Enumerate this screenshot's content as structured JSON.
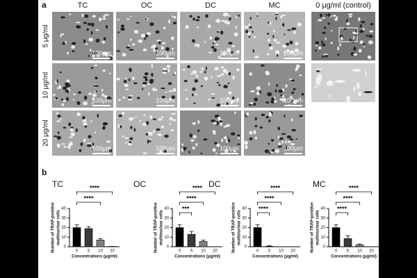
{
  "figure": {
    "panel_a": {
      "label": "a",
      "columns": [
        "TC",
        "OC",
        "DC",
        "MC",
        "0 μg/ml (control)"
      ],
      "rows": [
        "5 μg/ml",
        "10 μg/ml",
        "20 μg/ml"
      ],
      "scale_bar": "100μm"
    },
    "panel_b": {
      "label": "b"
    }
  },
  "chart_data": [
    {
      "type": "bar",
      "title": "TC",
      "categories": [
        "0",
        "5",
        "10",
        "20"
      ],
      "values": [
        20,
        19,
        7,
        0.3
      ],
      "errors": [
        3,
        2,
        1.5,
        0
      ],
      "colors": [
        "#000000",
        "#3a3a3a",
        "#808080",
        "#c8c8c8"
      ],
      "ylim": [
        0,
        40
      ],
      "yticks": [
        0,
        10,
        20,
        30,
        40
      ],
      "xlabel": "Concentrations (μg/ml)",
      "ylabel": [
        "Number of TRAP-positive",
        "multinuclear cells"
      ],
      "comparisons": [
        {
          "label": "****",
          "between": [
            "0",
            "20"
          ]
        },
        {
          "label": "****",
          "between": [
            "0",
            "10"
          ]
        }
      ]
    },
    {
      "type": "bar",
      "title": "OC",
      "categories": [
        "0",
        "5",
        "10",
        "20"
      ],
      "values": [
        20,
        13,
        5.5,
        0
      ],
      "errors": [
        3,
        3,
        1.5,
        0
      ],
      "colors": [
        "#000000",
        "#3a3a3a",
        "#808080",
        "#c8c8c8"
      ],
      "ylim": [
        0,
        40
      ],
      "yticks": [
        0,
        10,
        20,
        30,
        40
      ],
      "xlabel": "Concentrations (μg/ml)",
      "ylabel": [
        "Number of TRAP-positive",
        "multinuclear cells"
      ],
      "comparisons": [
        {
          "label": "****",
          "between": [
            "0",
            "20"
          ]
        },
        {
          "label": "****",
          "between": [
            "0",
            "10"
          ]
        },
        {
          "label": "***",
          "between": [
            "0",
            "5"
          ]
        }
      ]
    },
    {
      "type": "bar",
      "title": "DC",
      "categories": [
        "0",
        "5",
        "10",
        "20"
      ],
      "values": [
        20,
        0.5,
        0,
        0
      ],
      "errors": [
        3,
        0.5,
        0,
        0
      ],
      "colors": [
        "#000000",
        "#3a3a3a",
        "#808080",
        "#c8c8c8"
      ],
      "ylim": [
        0,
        40
      ],
      "yticks": [
        0,
        10,
        20,
        30,
        40
      ],
      "xlabel": "Concentrations (μg/ml)",
      "ylabel": [
        "Number of TRAP-positive",
        "multinuclear cells"
      ],
      "comparisons": [
        {
          "label": "****",
          "between": [
            "0",
            "20"
          ]
        },
        {
          "label": "****",
          "between": [
            "0",
            "10"
          ]
        },
        {
          "label": "****",
          "between": [
            "0",
            "5"
          ]
        }
      ]
    },
    {
      "type": "bar",
      "title": "MC",
      "categories": [
        "0",
        "5",
        "10",
        "20"
      ],
      "values": [
        20,
        8.5,
        2,
        0
      ],
      "errors": [
        3,
        3,
        1,
        0
      ],
      "colors": [
        "#000000",
        "#3a3a3a",
        "#808080",
        "#c8c8c8"
      ],
      "ylim": [
        0,
        40
      ],
      "yticks": [
        0,
        10,
        20,
        30,
        40
      ],
      "xlabel": "Concentrations (μg/ml)",
      "ylabel": [
        "Number of TRAP-positive",
        "multinuclear cells"
      ],
      "comparisons": [
        {
          "label": "****",
          "between": [
            "0",
            "20"
          ]
        },
        {
          "label": "****",
          "between": [
            "0",
            "10"
          ]
        },
        {
          "label": "****",
          "between": [
            "0",
            "5"
          ]
        }
      ]
    }
  ]
}
